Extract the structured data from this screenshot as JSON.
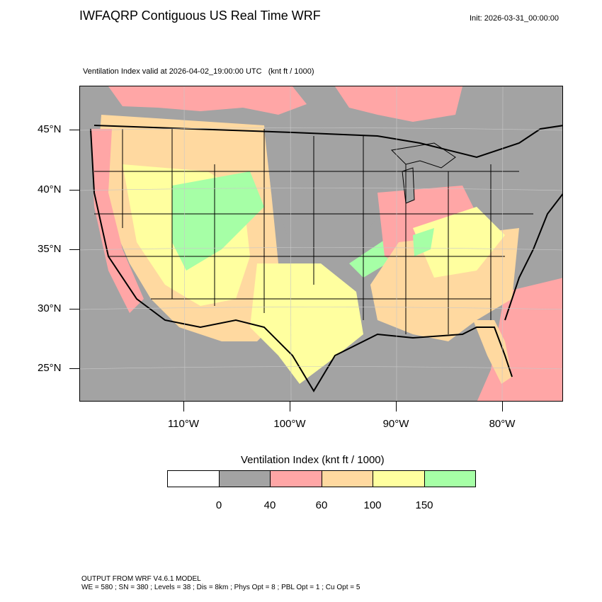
{
  "title": "IWFAQRP Contiguous US Real Time WRF",
  "init": "Init: 2026-03-31_00:00:00",
  "subtitle": {
    "field": "Ventilation Index valid at 2026-04-02_19:00:00 UTC",
    "units": "(knt ft / 1000)"
  },
  "map": {
    "lat_labels": [
      "45°N",
      "40°N",
      "35°N",
      "30°N",
      "25°N"
    ],
    "lon_labels": [
      "110°W",
      "100°W",
      "90°W",
      "80°W"
    ],
    "colors": {
      "ocean_land_low": "#a3a3a3",
      "pink": "#ffa6a6",
      "tan": "#ffd9a0",
      "yellow": "#ffff9f",
      "green": "#a6ffa6"
    }
  },
  "legend": {
    "title": "Ventilation Index  (knt ft / 1000)",
    "colors": [
      "#ffffff",
      "#a3a3a3",
      "#ffa6a6",
      "#ffd9a0",
      "#ffff9f",
      "#a6ffa6"
    ],
    "ticks": [
      "0",
      "40",
      "60",
      "100",
      "150"
    ]
  },
  "footer": {
    "line1": "OUTPUT FROM WRF V4.6.1 MODEL",
    "line2": "WE = 580 ; SN = 380 ; Levels = 38 ; Dis = 8km ; Phys Opt = 8 ; PBL Opt = 1 ; Cu Opt = 5"
  }
}
